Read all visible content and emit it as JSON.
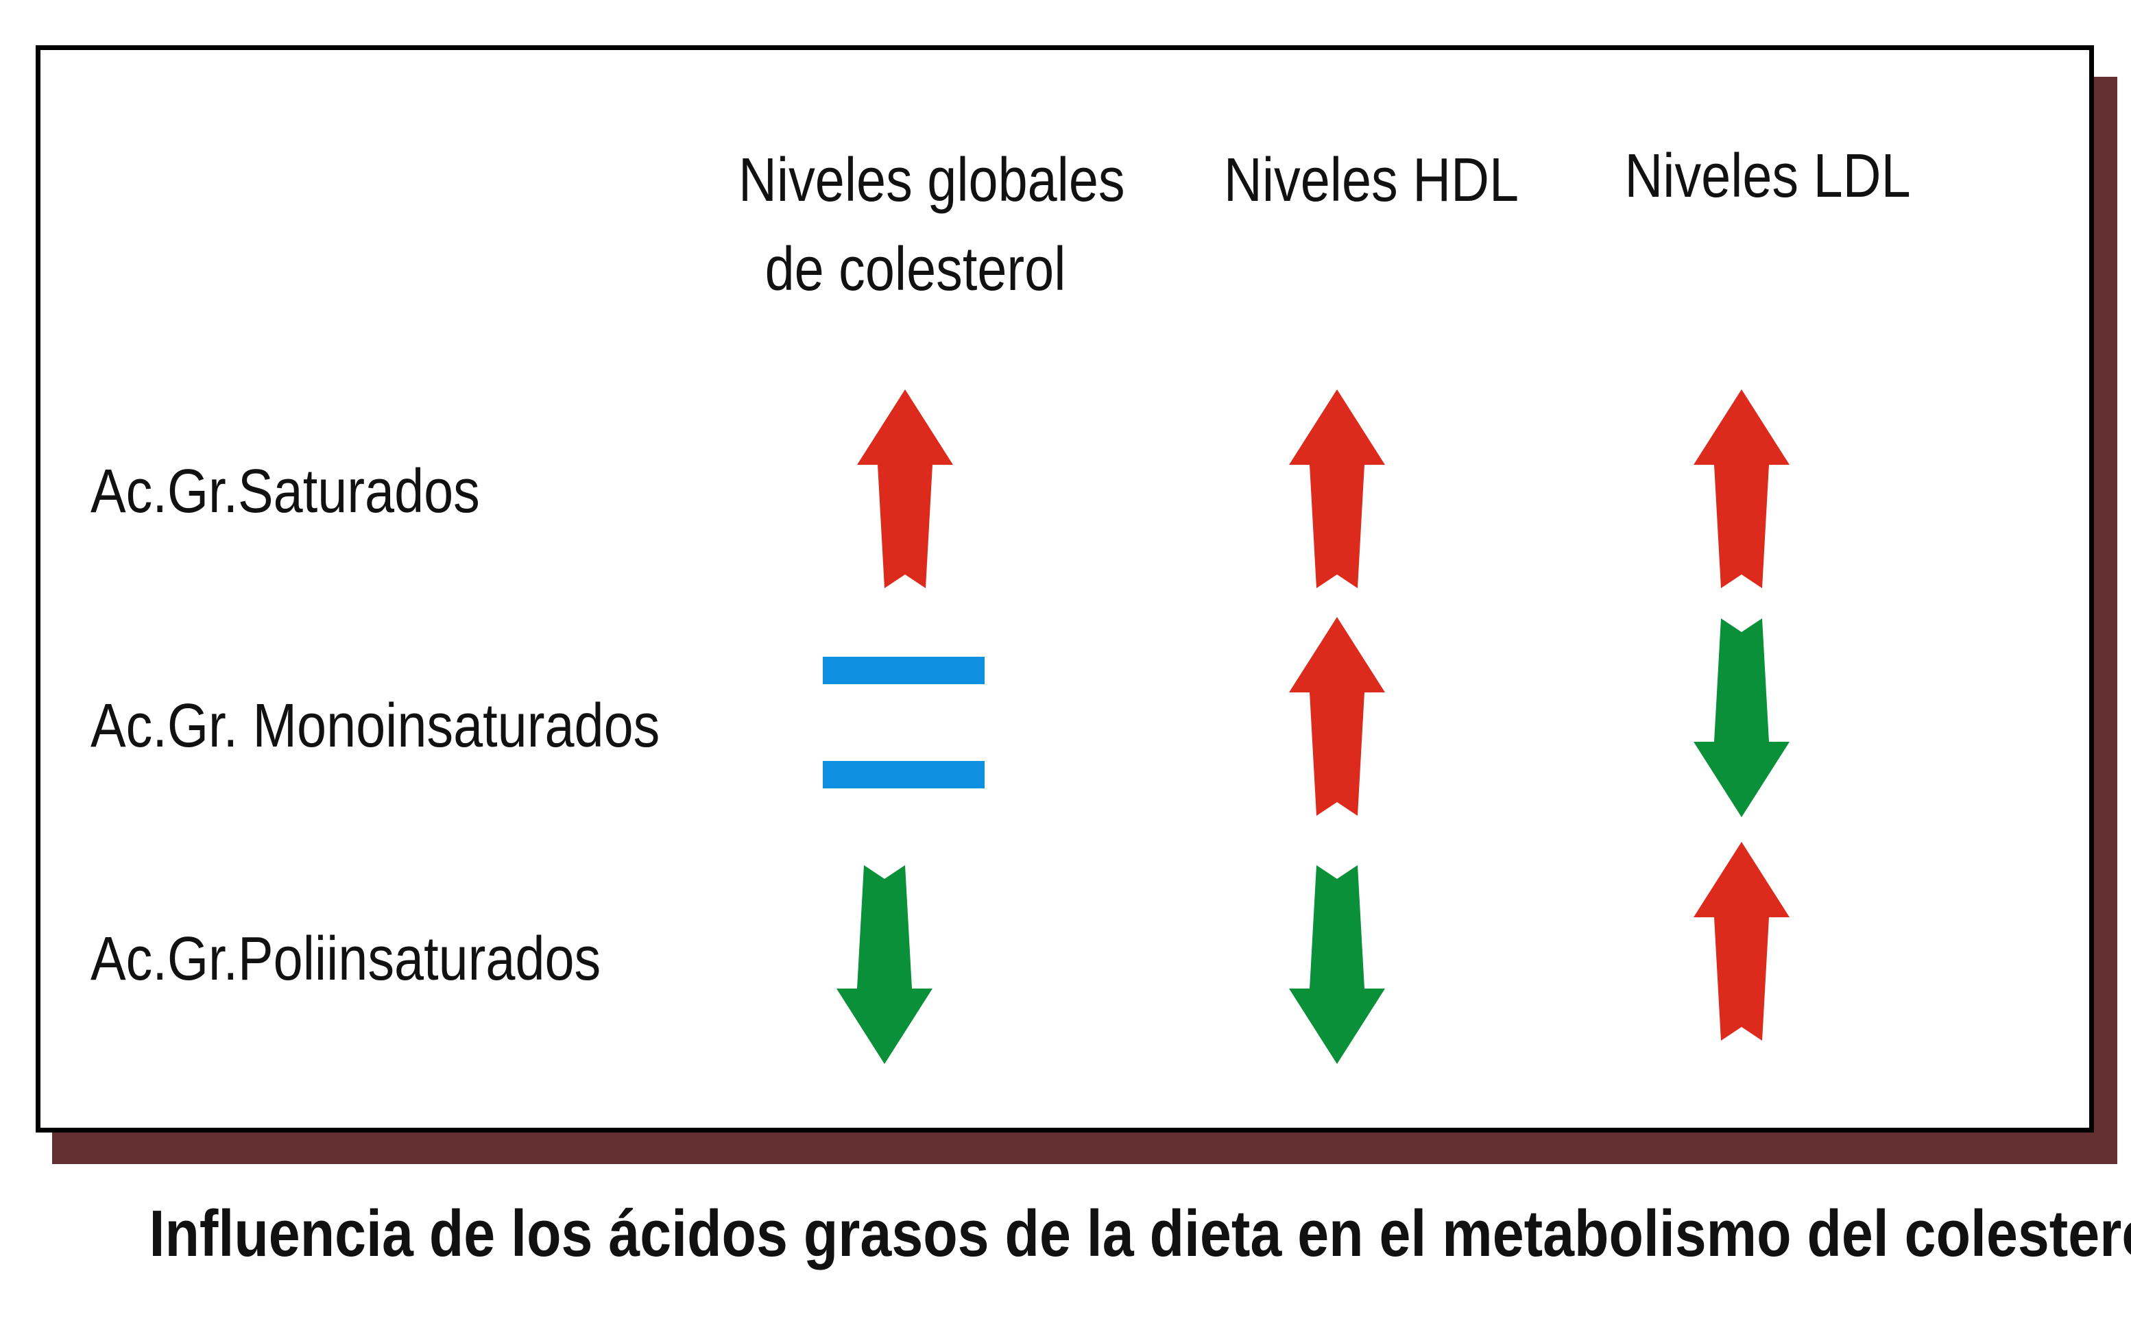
{
  "columns": [
    {
      "line1": "Niveles globales",
      "line2": "de colesterol"
    },
    {
      "line1": "Niveles HDL",
      "line2": ""
    },
    {
      "line1": "Niveles LDL",
      "line2": ""
    }
  ],
  "rows": [
    {
      "label": "Ac.Gr.Saturados",
      "effects": [
        "up",
        "up",
        "up"
      ]
    },
    {
      "label": "Ac.Gr. Monoinsaturados",
      "effects": [
        "equal",
        "up",
        "down"
      ]
    },
    {
      "label": "Ac.Gr.Poliinsaturados",
      "effects": [
        "down",
        "down",
        "up"
      ]
    }
  ],
  "caption": "Influencia de los ácidos grasos de la dieta en el metabolismo del colesterol",
  "colors": {
    "up_arrow": "#dc2b1c",
    "down_arrow": "#0a9038",
    "equal_sign": "#0f8fe0",
    "shadow": "#642f31",
    "border": "#000000"
  },
  "icons": {
    "up": "up-arrow-icon",
    "down": "down-arrow-icon",
    "equal": "equal-sign-icon"
  }
}
